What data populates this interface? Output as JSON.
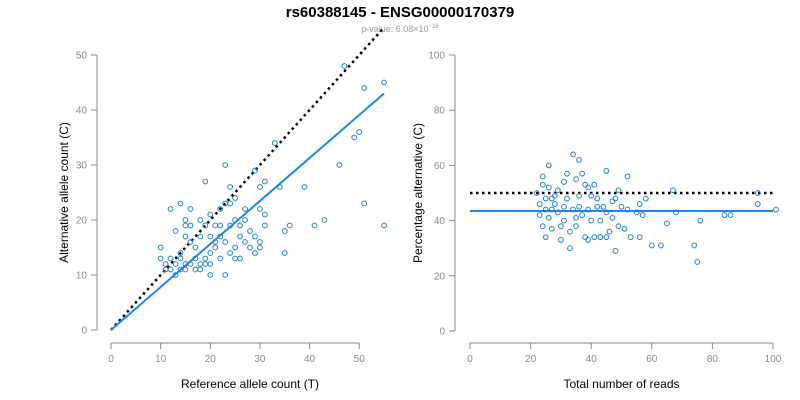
{
  "title": "rs60388145 - ENSG00000170379",
  "subtitle": {
    "prefix": "p-value: 6.08×10",
    "exp": "−16"
  },
  "colors": {
    "points": "#1f7fd4",
    "fit": "#1f87e5",
    "reference": "#000000",
    "axis": "#888888"
  },
  "chart_data": [
    {
      "type": "scatter",
      "xlabel": "Reference allele count (T)",
      "ylabel": "Alternative allele count (C)",
      "xlim": [
        0,
        56
      ],
      "ylim": [
        0,
        50
      ],
      "xticks": [
        0,
        10,
        20,
        30,
        40,
        50
      ],
      "yticks": [
        0,
        10,
        20,
        30,
        40,
        50
      ],
      "reference_line": {
        "style": "dotted",
        "from": [
          0,
          0
        ],
        "to": [
          55,
          55
        ]
      },
      "fit_line": {
        "style": "solid",
        "from": [
          0,
          0
        ],
        "to": [
          55,
          43
        ]
      },
      "points": [
        [
          10,
          15
        ],
        [
          10,
          13
        ],
        [
          11,
          12
        ],
        [
          11,
          11
        ],
        [
          12,
          13
        ],
        [
          12,
          11
        ],
        [
          12,
          22
        ],
        [
          13,
          12
        ],
        [
          13,
          18
        ],
        [
          13,
          10
        ],
        [
          14,
          23
        ],
        [
          14,
          14
        ],
        [
          14,
          13
        ],
        [
          14,
          11
        ],
        [
          15,
          17
        ],
        [
          15,
          20
        ],
        [
          15,
          19
        ],
        [
          15,
          12
        ],
        [
          15,
          11
        ],
        [
          16,
          22
        ],
        [
          16,
          19
        ],
        [
          16,
          16
        ],
        [
          16,
          12
        ],
        [
          17,
          15
        ],
        [
          17,
          13
        ],
        [
          17,
          11
        ],
        [
          18,
          20
        ],
        [
          18,
          17
        ],
        [
          18,
          12
        ],
        [
          18,
          11
        ],
        [
          19,
          27
        ],
        [
          19,
          19
        ],
        [
          19,
          13
        ],
        [
          19,
          12
        ],
        [
          20,
          21
        ],
        [
          20,
          17
        ],
        [
          20,
          14
        ],
        [
          20,
          12
        ],
        [
          20,
          10
        ],
        [
          21,
          19
        ],
        [
          21,
          16
        ],
        [
          21,
          15
        ],
        [
          22,
          22
        ],
        [
          22,
          19
        ],
        [
          22,
          17
        ],
        [
          22,
          13
        ],
        [
          23,
          30
        ],
        [
          23,
          23
        ],
        [
          23,
          16
        ],
        [
          23,
          10
        ],
        [
          24,
          26
        ],
        [
          24,
          23
        ],
        [
          24,
          19
        ],
        [
          24,
          14
        ],
        [
          25,
          24
        ],
        [
          25,
          20
        ],
        [
          25,
          15
        ],
        [
          25,
          13
        ],
        [
          26,
          19
        ],
        [
          26,
          17
        ],
        [
          26,
          13
        ],
        [
          27,
          22
        ],
        [
          27,
          20
        ],
        [
          27,
          16
        ],
        [
          28,
          18
        ],
        [
          28,
          15
        ],
        [
          29,
          29
        ],
        [
          29,
          17
        ],
        [
          29,
          14
        ],
        [
          30,
          26
        ],
        [
          30,
          22
        ],
        [
          30,
          16
        ],
        [
          30,
          15
        ],
        [
          31,
          27
        ],
        [
          31,
          21
        ],
        [
          31,
          19
        ],
        [
          33,
          34
        ],
        [
          34,
          26
        ],
        [
          35,
          18
        ],
        [
          35,
          14
        ],
        [
          36,
          19
        ],
        [
          39,
          26
        ],
        [
          41,
          19
        ],
        [
          43,
          20
        ],
        [
          46,
          30
        ],
        [
          47,
          48
        ],
        [
          49,
          35
        ],
        [
          50,
          36
        ],
        [
          51,
          23
        ],
        [
          51,
          44
        ],
        [
          55,
          45
        ],
        [
          55,
          19
        ]
      ]
    },
    {
      "type": "scatter",
      "xlabel": "Total number of reads",
      "ylabel": "Percentage alternative (C)",
      "xlim": [
        0,
        100
      ],
      "ylim": [
        0,
        100
      ],
      "xticks": [
        0,
        20,
        40,
        60,
        80,
        100
      ],
      "yticks": [
        0,
        20,
        40,
        60,
        80,
        100
      ],
      "reference_line": {
        "style": "dotted",
        "y": 50
      },
      "fit_line": {
        "style": "solid",
        "y": 43.5
      },
      "points": [
        [
          22,
          50
        ],
        [
          23,
          46
        ],
        [
          23,
          42
        ],
        [
          24,
          56
        ],
        [
          24,
          53
        ],
        [
          24,
          38
        ],
        [
          25,
          48
        ],
        [
          25,
          44
        ],
        [
          25,
          34
        ],
        [
          26,
          60
        ],
        [
          26,
          52
        ],
        [
          26,
          41
        ],
        [
          27,
          48
        ],
        [
          27,
          44
        ],
        [
          27,
          37
        ],
        [
          28,
          49
        ],
        [
          28,
          46
        ],
        [
          29,
          51
        ],
        [
          29,
          43
        ],
        [
          30,
          38
        ],
        [
          30,
          33
        ],
        [
          31,
          54
        ],
        [
          31,
          45
        ],
        [
          31,
          40
        ],
        [
          32,
          57
        ],
        [
          32,
          48
        ],
        [
          33,
          36
        ],
        [
          33,
          30
        ],
        [
          34,
          64
        ],
        [
          34,
          44
        ],
        [
          35,
          55
        ],
        [
          35,
          41
        ],
        [
          35,
          38
        ],
        [
          36,
          62
        ],
        [
          36,
          49
        ],
        [
          36,
          45
        ],
        [
          37,
          57
        ],
        [
          37,
          42
        ],
        [
          38,
          53
        ],
        [
          38,
          34
        ],
        [
          39,
          52
        ],
        [
          39,
          44
        ],
        [
          39,
          33
        ],
        [
          40,
          49
        ],
        [
          40,
          40
        ],
        [
          41,
          53
        ],
        [
          41,
          34
        ],
        [
          42,
          48
        ],
        [
          42,
          45
        ],
        [
          43,
          40
        ],
        [
          43,
          34
        ],
        [
          44,
          45
        ],
        [
          45,
          58
        ],
        [
          45,
          43
        ],
        [
          45,
          34
        ],
        [
          46,
          36
        ],
        [
          47,
          47
        ],
        [
          47,
          41
        ],
        [
          48,
          48
        ],
        [
          48,
          29
        ],
        [
          49,
          51
        ],
        [
          49,
          38
        ],
        [
          50,
          45
        ],
        [
          51,
          37
        ],
        [
          52,
          56
        ],
        [
          52,
          44
        ],
        [
          53,
          34
        ],
        [
          55,
          43
        ],
        [
          56,
          46
        ],
        [
          56,
          34
        ],
        [
          57,
          42
        ],
        [
          58,
          48
        ],
        [
          60,
          31
        ],
        [
          63,
          31
        ],
        [
          65,
          39
        ],
        [
          67,
          51
        ],
        [
          68,
          43
        ],
        [
          74,
          31
        ],
        [
          75,
          25
        ],
        [
          76,
          40
        ],
        [
          84,
          42
        ],
        [
          86,
          42
        ],
        [
          95,
          50
        ],
        [
          95,
          46
        ],
        [
          101,
          44
        ]
      ]
    }
  ]
}
